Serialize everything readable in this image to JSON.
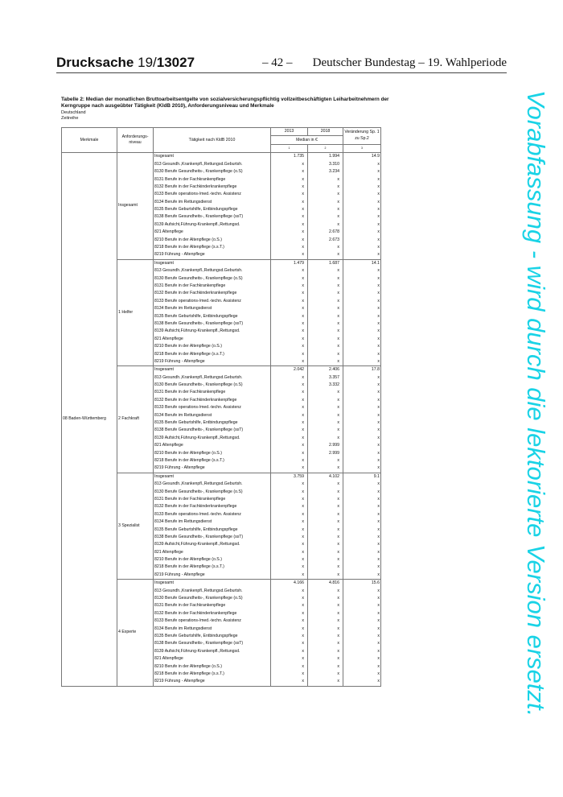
{
  "header": {
    "drucksache_label": "Drucksache",
    "drucksache_num_a": "19/",
    "drucksache_num_b": "13027",
    "page": "– 42 –",
    "right": "Deutscher Bundestag – 19. Wahlperiode"
  },
  "title": "Tabelle 2: Median der monatlichen Bruttoarbeitsentgelte von sozialversicherungspflichtig vollzeitbeschäftigten Leiharbeitnehmern der Kerngruppe nach ausgeübter Tätigkeit (KldB 2010), Anforderungsniveau und Merkmale",
  "subtitle1": "Deutschland",
  "subtitle2": "Zeitreihe",
  "table": {
    "headers": {
      "merkmale": "Merkmale",
      "niveau": "Anforderungs-niveau",
      "taetigkeit": "Tätigkeit nach KldB 2010",
      "y2013": "2013",
      "y2018": "2018",
      "change": "Veränderung Sp. 1 zu Sp.2",
      "median": "Median in €",
      "n1": "1",
      "n2": "2",
      "n3": "3"
    },
    "merkmal": "08 Baden-Württemberg",
    "occupations": [
      "Insgesamt",
      "813 Gesundh.,Krankenpfl.,Rettungsd.Geburtsh.",
      "8130 Berufe Gesundheits-, Krankenpflege (o.S)",
      "8131 Berufe in der Fachkrankenpflege",
      "8132 Berufe in der Fachkinderkrankenpflege",
      "8133 Berufe operations-/med.-techn. Assistenz",
      "8134 Berufe im Rettungsdienst",
      "8135 Berufe Geburtshilfe, Entbindungspflege",
      "8138 Berufe Gesundheits-, Krankenpflege (ssT)",
      "8139 Aufsicht,Führung-Krankenpfl.,Rettungsd.",
      "821 Altenpflege",
      "8210 Berufe in der Altenpflege (o.S.)",
      "8218 Berufe in der Altenpflege (s.s.T.)",
      "8219 Führung - Altenpflege"
    ],
    "blocks": [
      {
        "niveau": "Insgesamt",
        "rows": [
          [
            "1.735",
            "1.994",
            "14.9"
          ],
          [
            "x",
            "3.310",
            "x"
          ],
          [
            "x",
            "3.234",
            "x"
          ],
          [
            "x",
            "x",
            "x"
          ],
          [
            "x",
            "x",
            "x"
          ],
          [
            "x",
            "x",
            "x"
          ],
          [
            "x",
            "x",
            "x"
          ],
          [
            "x",
            "x",
            "x"
          ],
          [
            "x",
            "x",
            "x"
          ],
          [
            "x",
            "x",
            "x"
          ],
          [
            "x",
            "2.678",
            "x"
          ],
          [
            "x",
            "2.673",
            "x"
          ],
          [
            "x",
            "x",
            "x"
          ],
          [
            "x",
            "x",
            "x"
          ]
        ]
      },
      {
        "niveau": "1 Helfer",
        "rows": [
          [
            "1.479",
            "1.687",
            "14.1"
          ],
          [
            "x",
            "x",
            "x"
          ],
          [
            "x",
            "x",
            "x"
          ],
          [
            "x",
            "x",
            "x"
          ],
          [
            "x",
            "x",
            "x"
          ],
          [
            "x",
            "x",
            "x"
          ],
          [
            "x",
            "x",
            "x"
          ],
          [
            "x",
            "x",
            "x"
          ],
          [
            "x",
            "x",
            "x"
          ],
          [
            "x",
            "x",
            "x"
          ],
          [
            "x",
            "x",
            "x"
          ],
          [
            "x",
            "x",
            "x"
          ],
          [
            "x",
            "x",
            "x"
          ],
          [
            "x",
            "x",
            "x"
          ]
        ]
      },
      {
        "niveau": "2 Fachkraft",
        "rows": [
          [
            "2.042",
            "2.406",
            "17.8"
          ],
          [
            "x",
            "3.357",
            "x"
          ],
          [
            "x",
            "3.332",
            "x"
          ],
          [
            "x",
            "x",
            "x"
          ],
          [
            "x",
            "x",
            "x"
          ],
          [
            "x",
            "x",
            "x"
          ],
          [
            "x",
            "x",
            "x"
          ],
          [
            "x",
            "x",
            "x"
          ],
          [
            "x",
            "x",
            "x"
          ],
          [
            "x",
            "x",
            "x"
          ],
          [
            "x",
            "2.999",
            "x"
          ],
          [
            "x",
            "2.999",
            "x"
          ],
          [
            "x",
            "x",
            "x"
          ],
          [
            "x",
            "x",
            "x"
          ]
        ]
      },
      {
        "niveau": "3 Spezialist",
        "rows": [
          [
            "3.759",
            "4.102",
            "9.1"
          ],
          [
            "x",
            "x",
            "x"
          ],
          [
            "x",
            "x",
            "x"
          ],
          [
            "x",
            "x",
            "x"
          ],
          [
            "x",
            "x",
            "x"
          ],
          [
            "x",
            "x",
            "x"
          ],
          [
            "x",
            "x",
            "x"
          ],
          [
            "x",
            "x",
            "x"
          ],
          [
            "x",
            "x",
            "x"
          ],
          [
            "x",
            "x",
            "x"
          ],
          [
            "x",
            "x",
            "x"
          ],
          [
            "x",
            "x",
            "x"
          ],
          [
            "x",
            "x",
            "x"
          ],
          [
            "x",
            "x",
            "x"
          ]
        ]
      },
      {
        "niveau": "4 Experte",
        "rows": [
          [
            "4.166",
            "4.816",
            "15.6"
          ],
          [
            "x",
            "x",
            "x"
          ],
          [
            "x",
            "x",
            "x"
          ],
          [
            "x",
            "x",
            "x"
          ],
          [
            "x",
            "x",
            "x"
          ],
          [
            "x",
            "x",
            "x"
          ],
          [
            "x",
            "x",
            "x"
          ],
          [
            "x",
            "x",
            "x"
          ],
          [
            "x",
            "x",
            "x"
          ],
          [
            "x",
            "x",
            "x"
          ],
          [
            "x",
            "x",
            "x"
          ],
          [
            "x",
            "x",
            "x"
          ],
          [
            "x",
            "x",
            "x"
          ],
          [
            "x",
            "x",
            "x"
          ]
        ]
      }
    ]
  },
  "watermark": {
    "text": "Vorabfassung - wird durch die lektorierte Version ersetzt.",
    "color": "#19d3e6"
  }
}
